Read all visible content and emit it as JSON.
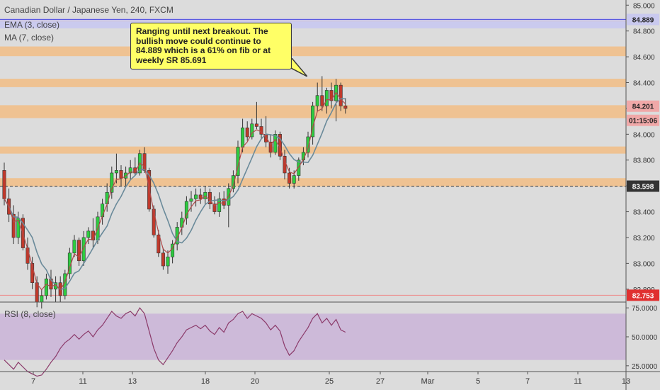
{
  "title": "Canadian Dollar / Japanese Yen, 240, FXCM",
  "indicators": [
    "EMA (3, close)",
    "MA (7, close)"
  ],
  "rsi_label": "RSI (8, close)",
  "note": "Ranging until next breakout. The bullish move could continue to 84.889 which is a 61% on fib or at weekly SR 85.691",
  "colors": {
    "up": "#2ecc40",
    "down": "#c0392b",
    "zone": "#f5b97a",
    "rsi_band": "#cbb6d8",
    "ema": "#b04a4a",
    "ma": "#6a8a9a"
  },
  "chart_data": {
    "type": "candlestick",
    "x_ticks": [
      "7",
      "11",
      "13",
      "18",
      "20",
      "25",
      "27",
      "Mar",
      "5",
      "7",
      "11",
      "13"
    ],
    "y_ticks": [
      "85.000",
      "84.800",
      "84.600",
      "84.400",
      "84.200",
      "84.000",
      "83.800",
      "83.600",
      "83.400",
      "83.200",
      "83.000",
      "82.800"
    ],
    "price_tags": {
      "top": "84.889",
      "last": "84.201",
      "countdown": "01:15:06",
      "mid": "83.598",
      "low": "82.753"
    },
    "zones": [
      [
        84.87,
        84.9
      ],
      [
        84.605,
        84.68
      ],
      [
        84.365,
        84.43
      ],
      [
        84.125,
        84.225
      ],
      [
        83.85,
        83.905
      ],
      [
        83.595,
        83.66
      ]
    ],
    "candles": [
      {
        "o": 83.72,
        "h": 83.78,
        "l": 83.45,
        "c": 83.5
      },
      {
        "o": 83.5,
        "h": 83.58,
        "l": 83.32,
        "c": 83.38
      },
      {
        "o": 83.38,
        "h": 83.45,
        "l": 83.15,
        "c": 83.2
      },
      {
        "o": 83.2,
        "h": 83.4,
        "l": 83.15,
        "c": 83.35
      },
      {
        "o": 83.35,
        "h": 83.38,
        "l": 83.1,
        "c": 83.12
      },
      {
        "o": 83.12,
        "h": 83.2,
        "l": 82.95,
        "c": 83.0
      },
      {
        "o": 83.0,
        "h": 83.05,
        "l": 82.8,
        "c": 82.85
      },
      {
        "o": 82.85,
        "h": 82.9,
        "l": 82.66,
        "c": 82.7
      },
      {
        "o": 82.7,
        "h": 82.8,
        "l": 82.65,
        "c": 82.75
      },
      {
        "o": 82.75,
        "h": 82.92,
        "l": 82.72,
        "c": 82.88
      },
      {
        "o": 82.88,
        "h": 82.95,
        "l": 82.74,
        "c": 82.8
      },
      {
        "o": 82.8,
        "h": 82.9,
        "l": 82.7,
        "c": 82.85
      },
      {
        "o": 82.85,
        "h": 82.9,
        "l": 82.7,
        "c": 82.75
      },
      {
        "o": 82.75,
        "h": 82.95,
        "l": 82.72,
        "c": 82.92
      },
      {
        "o": 82.92,
        "h": 83.12,
        "l": 82.88,
        "c": 83.08
      },
      {
        "o": 83.08,
        "h": 83.22,
        "l": 83.05,
        "c": 83.18
      },
      {
        "o": 83.18,
        "h": 83.2,
        "l": 82.98,
        "c": 83.02
      },
      {
        "o": 83.02,
        "h": 83.25,
        "l": 82.98,
        "c": 83.2
      },
      {
        "o": 83.2,
        "h": 83.28,
        "l": 83.15,
        "c": 83.25
      },
      {
        "o": 83.25,
        "h": 83.35,
        "l": 83.12,
        "c": 83.18
      },
      {
        "o": 83.18,
        "h": 83.4,
        "l": 83.15,
        "c": 83.36
      },
      {
        "o": 83.36,
        "h": 83.5,
        "l": 83.3,
        "c": 83.46
      },
      {
        "o": 83.46,
        "h": 83.62,
        "l": 83.4,
        "c": 83.55
      },
      {
        "o": 83.55,
        "h": 83.75,
        "l": 83.5,
        "c": 83.7
      },
      {
        "o": 83.7,
        "h": 83.85,
        "l": 83.62,
        "c": 83.72
      },
      {
        "o": 83.72,
        "h": 83.76,
        "l": 83.6,
        "c": 83.66
      },
      {
        "o": 83.66,
        "h": 83.75,
        "l": 83.6,
        "c": 83.7
      },
      {
        "o": 83.7,
        "h": 83.8,
        "l": 83.65,
        "c": 83.74
      },
      {
        "o": 83.74,
        "h": 83.82,
        "l": 83.68,
        "c": 83.7
      },
      {
        "o": 83.7,
        "h": 83.88,
        "l": 83.68,
        "c": 83.85
      },
      {
        "o": 83.85,
        "h": 83.9,
        "l": 83.7,
        "c": 83.72
      },
      {
        "o": 83.72,
        "h": 83.74,
        "l": 83.4,
        "c": 83.42
      },
      {
        "o": 83.42,
        "h": 83.45,
        "l": 83.2,
        "c": 83.22
      },
      {
        "o": 83.22,
        "h": 83.26,
        "l": 83.05,
        "c": 83.08
      },
      {
        "o": 83.08,
        "h": 83.12,
        "l": 82.95,
        "c": 82.98
      },
      {
        "o": 82.98,
        "h": 83.1,
        "l": 82.92,
        "c": 83.05
      },
      {
        "o": 83.05,
        "h": 83.18,
        "l": 83.0,
        "c": 83.15
      },
      {
        "o": 83.15,
        "h": 83.32,
        "l": 83.1,
        "c": 83.28
      },
      {
        "o": 83.28,
        "h": 83.4,
        "l": 83.22,
        "c": 83.35
      },
      {
        "o": 83.35,
        "h": 83.52,
        "l": 83.3,
        "c": 83.48
      },
      {
        "o": 83.48,
        "h": 83.56,
        "l": 83.4,
        "c": 83.5
      },
      {
        "o": 83.5,
        "h": 83.58,
        "l": 83.44,
        "c": 83.53
      },
      {
        "o": 83.53,
        "h": 83.58,
        "l": 83.46,
        "c": 83.5
      },
      {
        "o": 83.5,
        "h": 83.6,
        "l": 83.46,
        "c": 83.55
      },
      {
        "o": 83.55,
        "h": 83.58,
        "l": 83.42,
        "c": 83.46
      },
      {
        "o": 83.46,
        "h": 83.52,
        "l": 83.38,
        "c": 83.4
      },
      {
        "o": 83.4,
        "h": 83.55,
        "l": 83.36,
        "c": 83.5
      },
      {
        "o": 83.5,
        "h": 83.56,
        "l": 83.42,
        "c": 83.45
      },
      {
        "o": 83.45,
        "h": 83.62,
        "l": 83.28,
        "c": 83.58
      },
      {
        "o": 83.58,
        "h": 83.72,
        "l": 83.55,
        "c": 83.68
      },
      {
        "o": 83.68,
        "h": 83.95,
        "l": 83.62,
        "c": 83.9
      },
      {
        "o": 83.9,
        "h": 84.12,
        "l": 83.86,
        "c": 84.05
      },
      {
        "o": 84.05,
        "h": 84.1,
        "l": 83.95,
        "c": 83.98
      },
      {
        "o": 83.98,
        "h": 84.12,
        "l": 83.96,
        "c": 84.08
      },
      {
        "o": 84.08,
        "h": 84.25,
        "l": 84.04,
        "c": 84.06
      },
      {
        "o": 84.06,
        "h": 84.12,
        "l": 83.96,
        "c": 84.0
      },
      {
        "o": 84.0,
        "h": 84.14,
        "l": 83.9,
        "c": 83.94
      },
      {
        "o": 83.94,
        "h": 84.0,
        "l": 83.82,
        "c": 83.86
      },
      {
        "o": 83.86,
        "h": 84.03,
        "l": 83.84,
        "c": 84.0
      },
      {
        "o": 84.0,
        "h": 84.02,
        "l": 83.8,
        "c": 83.83
      },
      {
        "o": 83.83,
        "h": 83.88,
        "l": 83.65,
        "c": 83.7
      },
      {
        "o": 83.7,
        "h": 83.74,
        "l": 83.58,
        "c": 83.62
      },
      {
        "o": 83.62,
        "h": 83.72,
        "l": 83.58,
        "c": 83.68
      },
      {
        "o": 83.68,
        "h": 83.82,
        "l": 83.64,
        "c": 83.8
      },
      {
        "o": 83.8,
        "h": 83.9,
        "l": 83.76,
        "c": 83.86
      },
      {
        "o": 83.86,
        "h": 84.02,
        "l": 83.82,
        "c": 83.98
      },
      {
        "o": 83.98,
        "h": 84.25,
        "l": 83.92,
        "c": 84.22
      },
      {
        "o": 84.22,
        "h": 84.4,
        "l": 84.18,
        "c": 84.3
      },
      {
        "o": 84.3,
        "h": 84.45,
        "l": 84.18,
        "c": 84.22
      },
      {
        "o": 84.22,
        "h": 84.36,
        "l": 84.16,
        "c": 84.34
      },
      {
        "o": 84.34,
        "h": 84.4,
        "l": 84.2,
        "c": 84.26
      },
      {
        "o": 84.26,
        "h": 84.43,
        "l": 84.1,
        "c": 84.38
      },
      {
        "o": 84.38,
        "h": 84.4,
        "l": 84.18,
        "c": 84.22
      },
      {
        "o": 84.22,
        "h": 84.28,
        "l": 84.16,
        "c": 84.2
      }
    ],
    "rsi": [
      30,
      26,
      22,
      28,
      24,
      20,
      18,
      16,
      17,
      22,
      28,
      33,
      40,
      45,
      48,
      52,
      48,
      52,
      55,
      50,
      56,
      60,
      66,
      72,
      68,
      66,
      70,
      72,
      68,
      75,
      70,
      55,
      40,
      30,
      26,
      32,
      38,
      45,
      50,
      56,
      58,
      60,
      57,
      60,
      55,
      52,
      58,
      54,
      62,
      65,
      70,
      72,
      66,
      70,
      68,
      66,
      62,
      56,
      60,
      55,
      42,
      34,
      38,
      46,
      52,
      58,
      66,
      70,
      62,
      66,
      60,
      65,
      56,
      54
    ],
    "rsi_ticks": [
      "75.0000",
      "50.0000",
      "25.0000"
    ],
    "price_axis": [
      82.7,
      85.04
    ],
    "rsi_axis": [
      20,
      80
    ]
  }
}
